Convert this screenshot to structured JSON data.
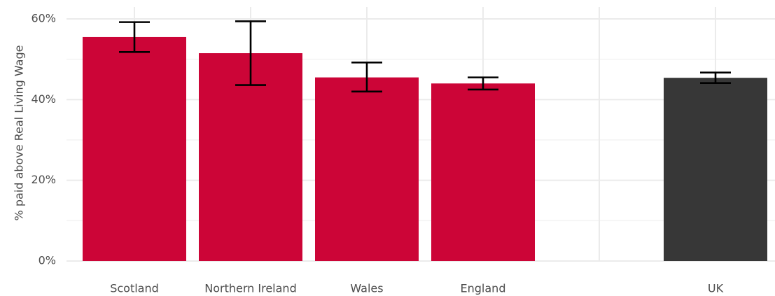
{
  "chart_data": {
    "type": "bar",
    "title": "",
    "xlabel": "",
    "ylabel": "% paid above Real Living Wage",
    "ylim": [
      0,
      62
    ],
    "yticks": [
      0,
      20,
      40,
      60
    ],
    "ytick_labels": [
      "0%",
      "20%",
      "40%",
      "60%"
    ],
    "grid": true,
    "legend": "none",
    "categories": [
      "Scotland",
      "Northern Ireland",
      "Wales",
      "England",
      "",
      "UK"
    ],
    "values": [
      55.5,
      51.5,
      45.5,
      44.0,
      null,
      45.4
    ],
    "error_low": [
      51.8,
      43.6,
      42.0,
      42.5,
      null,
      44.1
    ],
    "error_high": [
      59.2,
      59.4,
      49.2,
      45.5,
      null,
      46.7
    ],
    "bar_colors": [
      "#cc0537",
      "#cc0537",
      "#cc0537",
      "#cc0537",
      null,
      "#373737"
    ]
  }
}
